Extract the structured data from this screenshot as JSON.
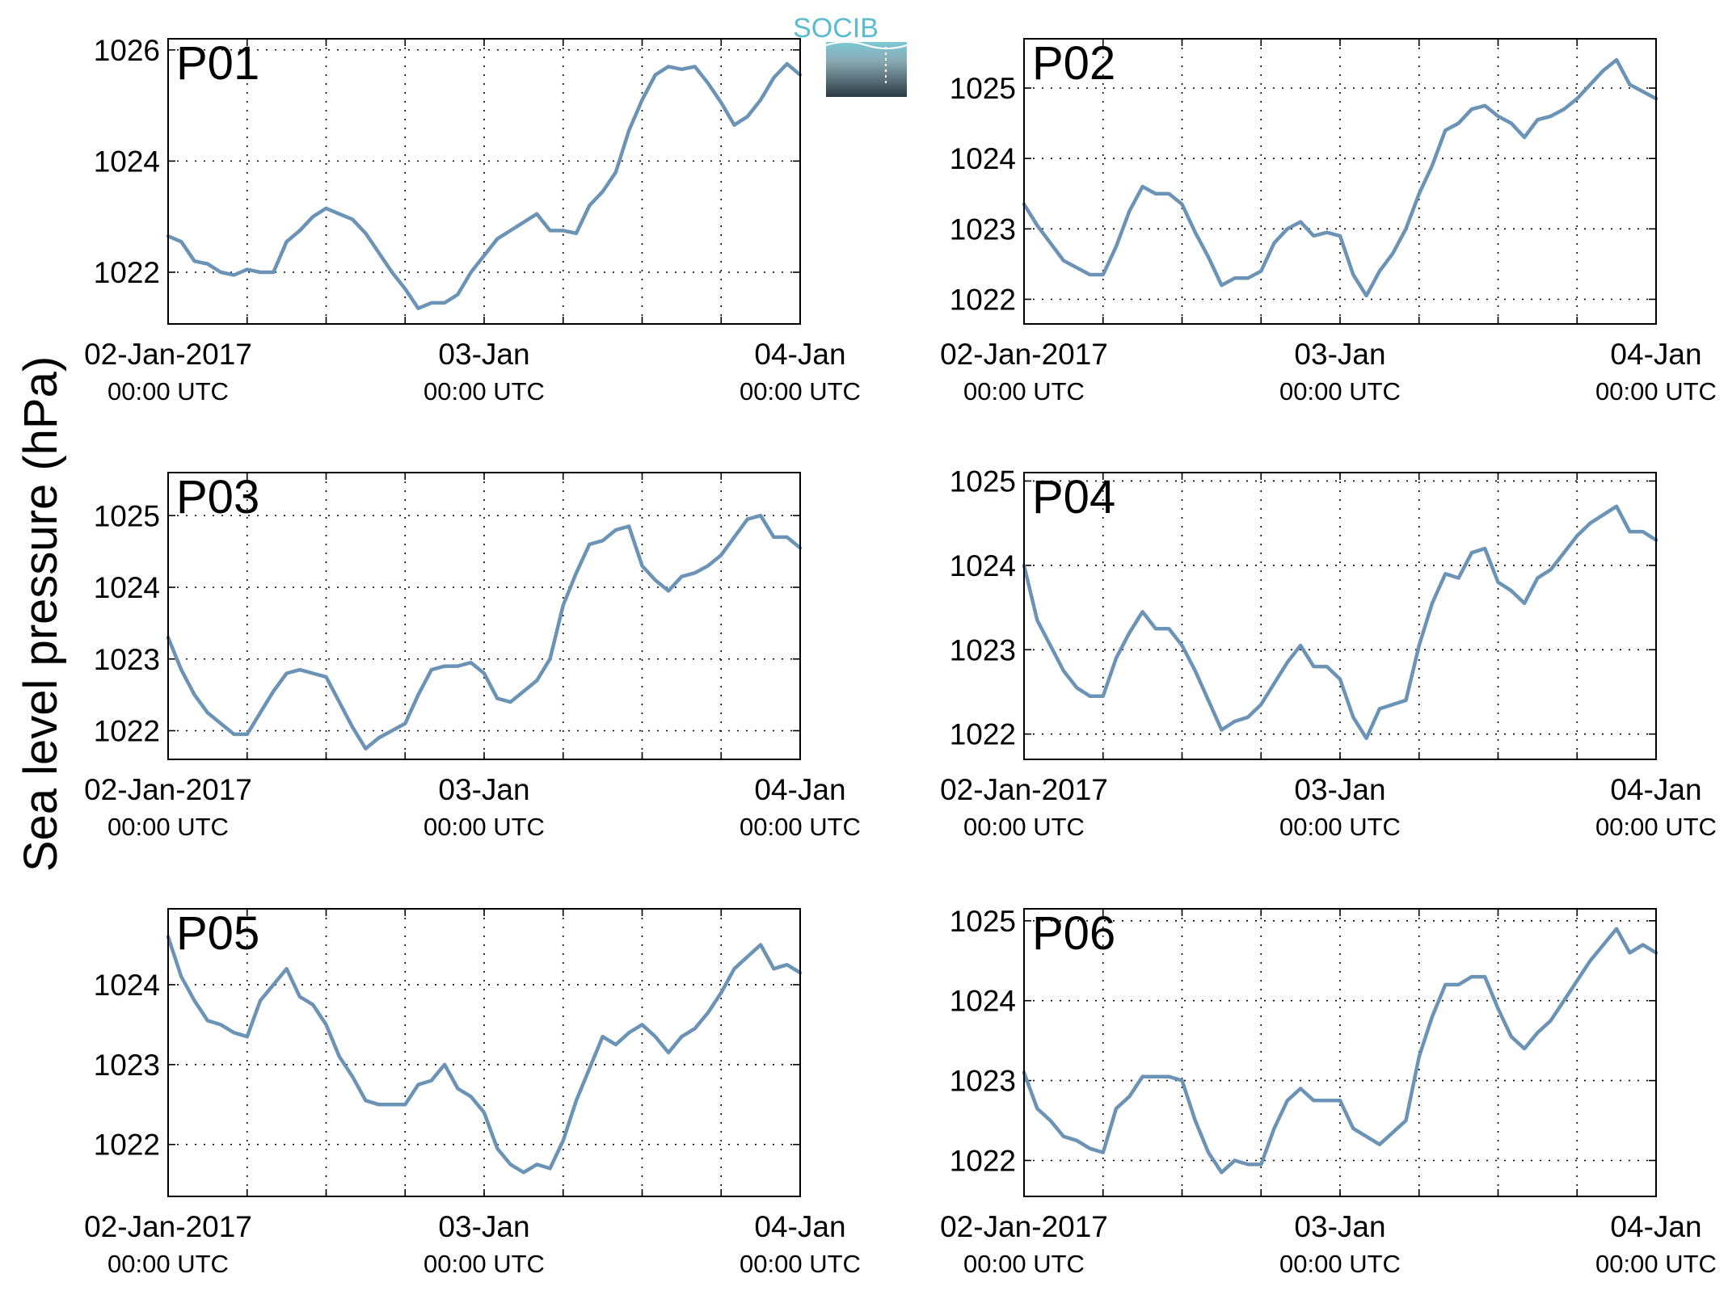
{
  "figure": {
    "ylabel": "Sea level pressure (hPa)",
    "logo_text": "SOCIB",
    "line_color": "#6b93b5",
    "label_color": "#ff0000"
  },
  "chart_data": [
    {
      "type": "line",
      "name": "P01",
      "label": "P01",
      "xlim": [
        0,
        48
      ],
      "ylim": [
        1021.07,
        1026.2
      ],
      "yticks": [
        1022,
        1024,
        1026
      ],
      "xticklabels": [
        {
          "x": 0,
          "line1": "02-Jan-2017",
          "line2": "00:00 UTC"
        },
        {
          "x": 24,
          "line1": "03-Jan",
          "line2": "00:00 UTC"
        },
        {
          "x": 48,
          "line1": "04-Jan",
          "line2": "00:00 UTC"
        }
      ],
      "grid": true,
      "x": [
        0,
        1,
        2,
        3,
        4,
        5,
        6,
        7,
        8,
        9,
        10,
        11,
        12,
        13,
        14,
        15,
        16,
        17,
        18,
        19,
        20,
        21,
        22,
        23,
        24,
        25,
        26,
        27,
        28,
        29,
        30,
        31,
        32,
        33,
        34,
        35,
        36,
        37,
        38,
        39,
        40,
        41,
        42,
        43,
        44,
        45,
        46,
        47,
        48
      ],
      "values": [
        1022.65,
        1022.55,
        1022.2,
        1022.15,
        1022.0,
        1021.95,
        1022.05,
        1022.0,
        1022.0,
        1022.55,
        1022.75,
        1023.0,
        1023.15,
        1023.05,
        1022.95,
        1022.7,
        1022.35,
        1022.0,
        1021.7,
        1021.35,
        1021.45,
        1021.45,
        1021.6,
        1022.0,
        1022.3,
        1022.6,
        1022.75,
        1022.9,
        1023.05,
        1022.75,
        1022.75,
        1022.7,
        1023.2,
        1023.45,
        1023.8,
        1024.55,
        1025.1,
        1025.55,
        1025.7,
        1025.65,
        1025.7,
        1025.4,
        1025.05,
        1024.65,
        1024.8,
        1025.1,
        1025.5,
        1025.75,
        1025.55
      ]
    },
    {
      "type": "line",
      "name": "P02",
      "label": "P02",
      "xlim": [
        0,
        48
      ],
      "ylim": [
        1021.65,
        1025.7
      ],
      "yticks": [
        1022,
        1023,
        1024,
        1025
      ],
      "xticklabels": [
        {
          "x": 0,
          "line1": "02-Jan-2017",
          "line2": "00:00 UTC"
        },
        {
          "x": 24,
          "line1": "03-Jan",
          "line2": "00:00 UTC"
        },
        {
          "x": 48,
          "line1": "04-Jan",
          "line2": "00:00 UTC"
        }
      ],
      "grid": true,
      "x": [
        0,
        1,
        2,
        3,
        4,
        5,
        6,
        7,
        8,
        9,
        10,
        11,
        12,
        13,
        14,
        15,
        16,
        17,
        18,
        19,
        20,
        21,
        22,
        23,
        24,
        25,
        26,
        27,
        28,
        29,
        30,
        31,
        32,
        33,
        34,
        35,
        36,
        37,
        38,
        39,
        40,
        41,
        42,
        43,
        44,
        45,
        46,
        47,
        48
      ],
      "values": [
        1023.35,
        1023.05,
        1022.8,
        1022.55,
        1022.45,
        1022.35,
        1022.35,
        1022.75,
        1023.25,
        1023.6,
        1023.5,
        1023.5,
        1023.35,
        1022.95,
        1022.6,
        1022.2,
        1022.3,
        1022.3,
        1022.4,
        1022.8,
        1023.0,
        1023.1,
        1022.9,
        1022.95,
        1022.9,
        1022.35,
        1022.05,
        1022.4,
        1022.65,
        1023.0,
        1023.5,
        1023.9,
        1024.4,
        1024.5,
        1024.7,
        1024.75,
        1024.6,
        1024.5,
        1024.3,
        1024.55,
        1024.6,
        1024.7,
        1024.85,
        1025.05,
        1025.25,
        1025.4,
        1025.05,
        1024.95,
        1024.85
      ]
    },
    {
      "type": "line",
      "name": "P03",
      "label": "P03",
      "xlim": [
        0,
        48
      ],
      "ylim": [
        1021.6,
        1025.6
      ],
      "yticks": [
        1022,
        1023,
        1024,
        1025
      ],
      "xticklabels": [
        {
          "x": 0,
          "line1": "02-Jan-2017",
          "line2": "00:00 UTC"
        },
        {
          "x": 24,
          "line1": "03-Jan",
          "line2": "00:00 UTC"
        },
        {
          "x": 48,
          "line1": "04-Jan",
          "line2": "00:00 UTC"
        }
      ],
      "grid": true,
      "x": [
        0,
        1,
        2,
        3,
        4,
        5,
        6,
        7,
        8,
        9,
        10,
        11,
        12,
        13,
        14,
        15,
        16,
        17,
        18,
        19,
        20,
        21,
        22,
        23,
        24,
        25,
        26,
        27,
        28,
        29,
        30,
        31,
        32,
        33,
        34,
        35,
        36,
        37,
        38,
        39,
        40,
        41,
        42,
        43,
        44,
        45,
        46,
        47,
        48
      ],
      "values": [
        1023.3,
        1022.85,
        1022.5,
        1022.25,
        1022.1,
        1021.95,
        1021.95,
        1022.25,
        1022.55,
        1022.8,
        1022.85,
        1022.8,
        1022.75,
        1022.4,
        1022.05,
        1021.75,
        1021.9,
        1022.0,
        1022.1,
        1022.5,
        1022.85,
        1022.9,
        1022.9,
        1022.95,
        1022.8,
        1022.45,
        1022.4,
        1022.55,
        1022.7,
        1023.0,
        1023.75,
        1024.2,
        1024.6,
        1024.65,
        1024.8,
        1024.85,
        1024.3,
        1024.1,
        1023.95,
        1024.15,
        1024.2,
        1024.3,
        1024.45,
        1024.7,
        1024.95,
        1025.0,
        1024.7,
        1024.7,
        1024.55
      ]
    },
    {
      "type": "line",
      "name": "P04",
      "label": "P04",
      "xlim": [
        0,
        48
      ],
      "ylim": [
        1021.7,
        1025.1
      ],
      "yticks": [
        1022,
        1023,
        1024,
        1025
      ],
      "xticklabels": [
        {
          "x": 0,
          "line1": "02-Jan-2017",
          "line2": "00:00 UTC"
        },
        {
          "x": 24,
          "line1": "03-Jan",
          "line2": "00:00 UTC"
        },
        {
          "x": 48,
          "line1": "04-Jan",
          "line2": "00:00 UTC"
        }
      ],
      "grid": true,
      "x": [
        0,
        1,
        2,
        3,
        4,
        5,
        6,
        7,
        8,
        9,
        10,
        11,
        12,
        13,
        14,
        15,
        16,
        17,
        18,
        19,
        20,
        21,
        22,
        23,
        24,
        25,
        26,
        27,
        28,
        29,
        30,
        31,
        32,
        33,
        34,
        35,
        36,
        37,
        38,
        39,
        40,
        41,
        42,
        43,
        44,
        45,
        46,
        47,
        48
      ],
      "values": [
        1024.0,
        1023.35,
        1023.05,
        1022.75,
        1022.55,
        1022.45,
        1022.45,
        1022.9,
        1023.2,
        1023.45,
        1023.25,
        1023.25,
        1023.05,
        1022.75,
        1022.4,
        1022.05,
        1022.15,
        1022.2,
        1022.35,
        1022.6,
        1022.85,
        1023.05,
        1022.8,
        1022.8,
        1022.65,
        1022.2,
        1021.95,
        1022.3,
        1022.35,
        1022.4,
        1023.05,
        1023.55,
        1023.9,
        1023.85,
        1024.15,
        1024.2,
        1023.8,
        1023.7,
        1023.55,
        1023.85,
        1023.95,
        1024.15,
        1024.35,
        1024.5,
        1024.6,
        1024.7,
        1024.4,
        1024.4,
        1024.3
      ]
    },
    {
      "type": "line",
      "name": "P05",
      "label": "P05",
      "xlim": [
        0,
        48
      ],
      "ylim": [
        1021.35,
        1024.95
      ],
      "yticks": [
        1022,
        1023,
        1024
      ],
      "xticklabels": [
        {
          "x": 0,
          "line1": "02-Jan-2017",
          "line2": "00:00 UTC"
        },
        {
          "x": 24,
          "line1": "03-Jan",
          "line2": "00:00 UTC"
        },
        {
          "x": 48,
          "line1": "04-Jan",
          "line2": "00:00 UTC"
        }
      ],
      "grid": true,
      "x": [
        0,
        1,
        2,
        3,
        4,
        5,
        6,
        7,
        8,
        9,
        10,
        11,
        12,
        13,
        14,
        15,
        16,
        17,
        18,
        19,
        20,
        21,
        22,
        23,
        24,
        25,
        26,
        27,
        28,
        29,
        30,
        31,
        32,
        33,
        34,
        35,
        36,
        37,
        38,
        39,
        40,
        41,
        42,
        43,
        44,
        45,
        46,
        47,
        48
      ],
      "values": [
        1024.6,
        1024.1,
        1023.8,
        1023.55,
        1023.5,
        1023.4,
        1023.35,
        1023.8,
        1024.0,
        1024.2,
        1023.85,
        1023.75,
        1023.5,
        1023.1,
        1022.85,
        1022.55,
        1022.5,
        1022.5,
        1022.5,
        1022.75,
        1022.8,
        1023.0,
        1022.7,
        1022.6,
        1022.4,
        1021.95,
        1021.75,
        1021.65,
        1021.75,
        1021.7,
        1022.05,
        1022.55,
        1022.95,
        1023.35,
        1023.25,
        1023.4,
        1023.5,
        1023.35,
        1023.15,
        1023.35,
        1023.45,
        1023.65,
        1023.9,
        1024.2,
        1024.35,
        1024.5,
        1024.2,
        1024.25,
        1024.15
      ]
    },
    {
      "type": "line",
      "name": "P06",
      "label": "P06",
      "xlim": [
        0,
        48
      ],
      "ylim": [
        1021.55,
        1025.15
      ],
      "yticks": [
        1022,
        1023,
        1024,
        1025
      ],
      "xticklabels": [
        {
          "x": 0,
          "line1": "02-Jan-2017",
          "line2": "00:00 UTC"
        },
        {
          "x": 24,
          "line1": "03-Jan",
          "line2": "00:00 UTC"
        },
        {
          "x": 48,
          "line1": "04-Jan",
          "line2": "00:00 UTC"
        }
      ],
      "grid": true,
      "x": [
        0,
        1,
        2,
        3,
        4,
        5,
        6,
        7,
        8,
        9,
        10,
        11,
        12,
        13,
        14,
        15,
        16,
        17,
        18,
        19,
        20,
        21,
        22,
        23,
        24,
        25,
        26,
        27,
        28,
        29,
        30,
        31,
        32,
        33,
        34,
        35,
        36,
        37,
        38,
        39,
        40,
        41,
        42,
        43,
        44,
        45,
        46,
        47,
        48
      ],
      "values": [
        1023.1,
        1022.65,
        1022.5,
        1022.3,
        1022.25,
        1022.15,
        1022.1,
        1022.65,
        1022.8,
        1023.05,
        1023.05,
        1023.05,
        1023.0,
        1022.5,
        1022.1,
        1021.85,
        1022.0,
        1021.95,
        1021.95,
        1022.4,
        1022.75,
        1022.9,
        1022.75,
        1022.75,
        1022.75,
        1022.4,
        1022.3,
        1022.2,
        1022.35,
        1022.5,
        1023.3,
        1023.8,
        1024.2,
        1024.2,
        1024.3,
        1024.3,
        1023.9,
        1023.55,
        1023.4,
        1023.6,
        1023.75,
        1024.0,
        1024.25,
        1024.5,
        1024.7,
        1024.9,
        1024.6,
        1024.7,
        1024.6
      ]
    }
  ]
}
